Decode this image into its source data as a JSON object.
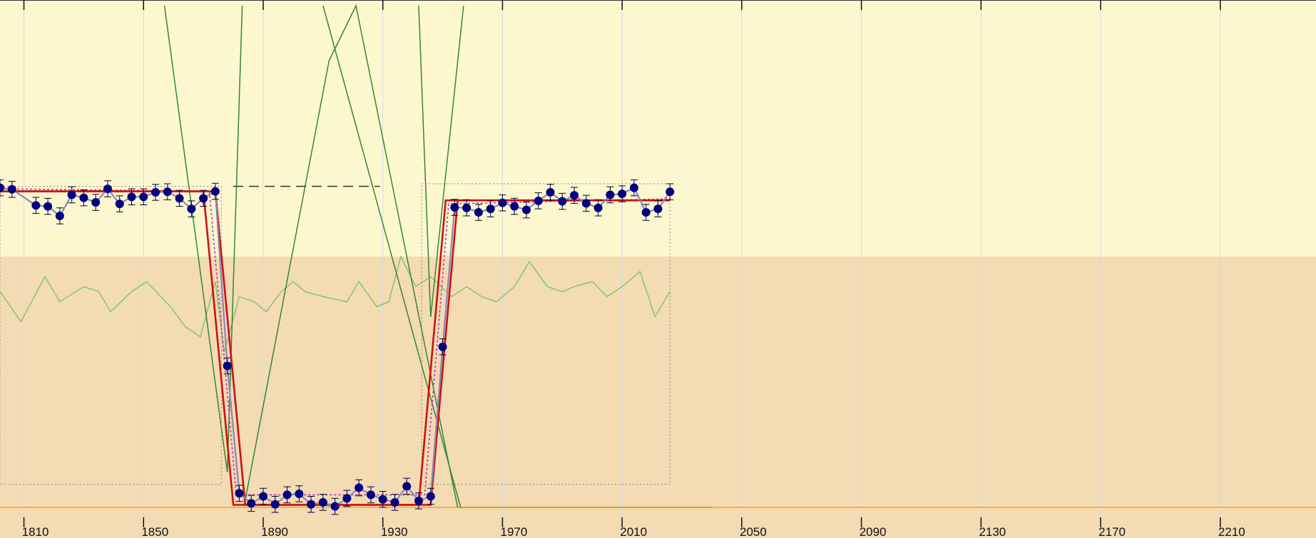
{
  "chart_data": {
    "type": "line",
    "title": "",
    "xlabel": "",
    "ylabel": "",
    "xlim": [
      1802,
      2242
    ],
    "ylim": [
      0,
      100
    ],
    "x_ticks": [
      1810,
      1850,
      1890,
      1930,
      1970,
      2010,
      2050,
      2090,
      2130,
      2170,
      2210
    ],
    "grid": true,
    "bands": [
      {
        "y_from": 50,
        "y_to": 100,
        "color": "#fdf7cf"
      },
      {
        "y_from": 0,
        "y_to": 50,
        "color": "#f3dbb3"
      }
    ],
    "colors": {
      "observed": "#000080",
      "observed_line": "#8888bb",
      "model": "#cc1111",
      "model_fit": "#bb33aa",
      "green": "#338833",
      "light_green": "#7cbf6c",
      "baseline": "#ff9900",
      "grid": "#d8d8e0"
    },
    "observed_points": [
      [
        1802,
        63.7
      ],
      [
        1806,
        63.4
      ],
      [
        1814,
        60.2
      ],
      [
        1818,
        60.0
      ],
      [
        1822,
        58.1
      ],
      [
        1826,
        62.3
      ],
      [
        1830,
        61.7
      ],
      [
        1834,
        60.8
      ],
      [
        1838,
        63.5
      ],
      [
        1842,
        60.5
      ],
      [
        1846,
        61.9
      ],
      [
        1850,
        61.9
      ],
      [
        1854,
        62.8
      ],
      [
        1858,
        62.9
      ],
      [
        1862,
        61.6
      ],
      [
        1866,
        59.5
      ],
      [
        1870,
        61.6
      ],
      [
        1874,
        63.0
      ],
      [
        1878,
        28.2
      ],
      [
        1882,
        2.8
      ],
      [
        1886,
        0.8
      ],
      [
        1890,
        2.2
      ],
      [
        1894,
        0.6
      ],
      [
        1898,
        2.5
      ],
      [
        1902,
        2.7
      ],
      [
        1906,
        0.6
      ],
      [
        1910,
        1.0
      ],
      [
        1914,
        0.2
      ],
      [
        1918,
        1.8
      ],
      [
        1922,
        3.9
      ],
      [
        1926,
        2.5
      ],
      [
        1930,
        1.6
      ],
      [
        1934,
        1.0
      ],
      [
        1938,
        4.2
      ],
      [
        1942,
        1.3
      ],
      [
        1946,
        2.2
      ],
      [
        1950,
        32.0
      ],
      [
        1954,
        59.8
      ],
      [
        1958,
        59.7
      ],
      [
        1962,
        58.8
      ],
      [
        1966,
        59.5
      ],
      [
        1970,
        60.7
      ],
      [
        1974,
        60.0
      ],
      [
        1978,
        59.3
      ],
      [
        1982,
        61.1
      ],
      [
        1986,
        62.8
      ],
      [
        1990,
        61.0
      ],
      [
        1994,
        62.2
      ],
      [
        1998,
        60.6
      ],
      [
        2002,
        59.7
      ],
      [
        2006,
        62.3
      ],
      [
        2010,
        62.5
      ],
      [
        2014,
        63.7
      ],
      [
        2018,
        58.8
      ],
      [
        2022,
        59.5
      ],
      [
        2026,
        62.9
      ]
    ],
    "error_bar": 1.6,
    "model_upper": [
      [
        1802,
        63.0
      ],
      [
        1870,
        63.0
      ],
      [
        1880,
        0.5
      ],
      [
        1946,
        0.5
      ],
      [
        1955,
        61.2
      ],
      [
        2026,
        61.2
      ]
    ],
    "model_lower": [
      [
        1802,
        63.0
      ],
      [
        1874,
        63.0
      ],
      [
        1884,
        0.5
      ],
      [
        1942,
        0.5
      ],
      [
        1951,
        61.2
      ],
      [
        2026,
        61.2
      ]
    ],
    "fit_dotted": [
      [
        1802,
        63.5
      ],
      [
        1872,
        63.0
      ],
      [
        1881,
        2.5
      ],
      [
        1944,
        2.5
      ],
      [
        1952,
        60.5
      ],
      [
        2026,
        61.5
      ]
    ],
    "box_left": {
      "x": [
        1802,
        1876
      ],
      "y": [
        64.0,
        4.6
      ]
    },
    "box_right": {
      "x": [
        1943,
        2026
      ],
      "y": [
        64.5,
        4.6
      ]
    },
    "dashed_line": {
      "x": [
        1880,
        1929
      ],
      "y": 64.0
    },
    "baseline_y": 0.0,
    "green_curves": [
      [
        [
          1857,
          100
        ],
        [
          1878,
          7.0
        ],
        [
          1883,
          100
        ]
      ],
      [
        [
          1884,
          1.4
        ],
        [
          1912,
          89.0
        ],
        [
          1921,
          100
        ],
        [
          1955,
          0.0
        ],
        [
          2040,
          0.0
        ]
      ],
      [
        [
          1910,
          100
        ],
        [
          1956,
          0.0
        ]
      ],
      [
        [
          1942,
          100
        ],
        [
          1946,
          38.0
        ],
        [
          1957,
          100
        ]
      ]
    ],
    "light_green_curve": [
      [
        1802,
        43
      ],
      [
        1809,
        37
      ],
      [
        1817,
        46
      ],
      [
        1822,
        41
      ],
      [
        1830,
        44
      ],
      [
        1835,
        43
      ],
      [
        1839,
        39
      ],
      [
        1846,
        43
      ],
      [
        1851,
        45
      ],
      [
        1859,
        40
      ],
      [
        1864,
        36
      ],
      [
        1869,
        34
      ],
      [
        1874,
        45
      ],
      [
        1877,
        31
      ],
      [
        1882,
        42
      ],
      [
        1887,
        41
      ],
      [
        1891,
        39
      ],
      [
        1896,
        43
      ],
      [
        1900,
        45
      ],
      [
        1904,
        43
      ],
      [
        1910,
        42
      ],
      [
        1918,
        41
      ],
      [
        1922,
        45
      ],
      [
        1928,
        40
      ],
      [
        1932,
        41
      ],
      [
        1936,
        50
      ],
      [
        1941,
        44
      ],
      [
        1946,
        46
      ],
      [
        1953,
        42
      ],
      [
        1958,
        44
      ],
      [
        1963,
        42
      ],
      [
        1968,
        41
      ],
      [
        1974,
        44
      ],
      [
        1979,
        49
      ],
      [
        1985,
        44
      ],
      [
        1990,
        43
      ],
      [
        1994,
        44
      ],
      [
        2000,
        45
      ],
      [
        2005,
        42
      ],
      [
        2010,
        44
      ],
      [
        2016,
        47
      ],
      [
        2021,
        38
      ],
      [
        2026,
        43
      ]
    ]
  }
}
